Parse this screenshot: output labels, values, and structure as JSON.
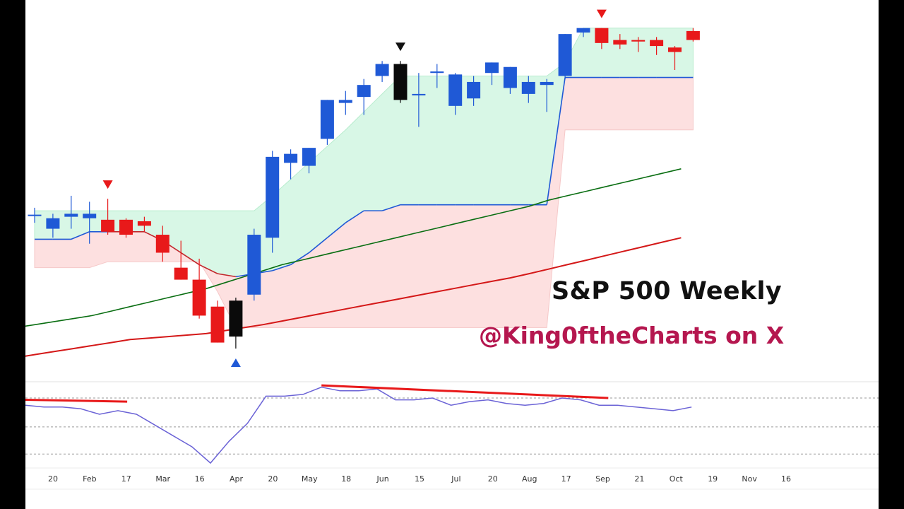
{
  "overlay": {
    "title": "S&P 500 Weekly",
    "handle": "@King0ftheCharts on X",
    "handle_color": "#b5174f"
  },
  "chart_data": {
    "type": "candlestick",
    "title": "S&P 500 Weekly",
    "candles": [
      {
        "o": 5867,
        "h": 5890,
        "l": 5840,
        "c": 5867,
        "color": "blue"
      },
      {
        "o": 5820,
        "h": 5870,
        "l": 5790,
        "c": 5855,
        "color": "blue"
      },
      {
        "o": 5860,
        "h": 5930,
        "l": 5820,
        "c": 5870,
        "color": "blue"
      },
      {
        "o": 5855,
        "h": 5910,
        "l": 5770,
        "c": 5870,
        "color": "blue"
      },
      {
        "o": 5850,
        "h": 5920,
        "l": 5800,
        "c": 5810,
        "color": "red"
      },
      {
        "o": 5850,
        "h": 5855,
        "l": 5790,
        "c": 5800,
        "color": "red"
      },
      {
        "o": 5845,
        "h": 5860,
        "l": 5810,
        "c": 5830,
        "color": "red"
      },
      {
        "o": 5800,
        "h": 5830,
        "l": 5710,
        "c": 5740,
        "color": "red"
      },
      {
        "o": 5690,
        "h": 5780,
        "l": 5650,
        "c": 5650,
        "color": "red"
      },
      {
        "o": 5650,
        "h": 5720,
        "l": 5520,
        "c": 5530,
        "color": "red"
      },
      {
        "o": 5560,
        "h": 5580,
        "l": 5440,
        "c": 5440,
        "color": "red"
      },
      {
        "o": 5460,
        "h": 5590,
        "l": 5420,
        "c": 5580,
        "color": "black"
      },
      {
        "o": 5600,
        "h": 5820,
        "l": 5580,
        "c": 5800,
        "color": "blue"
      },
      {
        "o": 5790,
        "h": 6080,
        "l": 5740,
        "c": 6060,
        "color": "blue"
      },
      {
        "o": 6040,
        "h": 6085,
        "l": 5985,
        "c": 6070,
        "color": "blue"
      },
      {
        "o": 6030,
        "h": 6090,
        "l": 6005,
        "c": 6090,
        "color": "blue"
      },
      {
        "o": 6120,
        "h": 6250,
        "l": 6100,
        "c": 6250,
        "color": "blue"
      },
      {
        "o": 6240,
        "h": 6280,
        "l": 6200,
        "c": 6250,
        "color": "blue"
      },
      {
        "o": 6260,
        "h": 6320,
        "l": 6200,
        "c": 6300,
        "color": "blue"
      },
      {
        "o": 6330,
        "h": 6380,
        "l": 6310,
        "c": 6370,
        "color": "blue"
      },
      {
        "o": 6370,
        "h": 6380,
        "l": 6240,
        "c": 6250,
        "color": "black"
      },
      {
        "o": 6270,
        "h": 6340,
        "l": 6160,
        "c": 6270,
        "color": "blue"
      },
      {
        "o": 6340,
        "h": 6370,
        "l": 6290,
        "c": 6345,
        "color": "blue"
      },
      {
        "o": 6230,
        "h": 6340,
        "l": 6200,
        "c": 6335,
        "color": "blue"
      },
      {
        "o": 6255,
        "h": 6330,
        "l": 6230,
        "c": 6310,
        "color": "blue"
      },
      {
        "o": 6340,
        "h": 6375,
        "l": 6300,
        "c": 6375,
        "color": "blue"
      },
      {
        "o": 6290,
        "h": 6360,
        "l": 6270,
        "c": 6360,
        "color": "blue"
      },
      {
        "o": 6270,
        "h": 6330,
        "l": 6240,
        "c": 6310,
        "color": "blue"
      },
      {
        "o": 6300,
        "h": 6320,
        "l": 6210,
        "c": 6310,
        "color": "blue"
      },
      {
        "o": 6330,
        "h": 6470,
        "l": 6320,
        "c": 6470,
        "color": "blue"
      },
      {
        "o": 6475,
        "h": 6490,
        "l": 6460,
        "c": 6490,
        "color": "blue"
      },
      {
        "o": 6490,
        "h": 6490,
        "l": 6420,
        "c": 6440,
        "color": "red"
      },
      {
        "o": 6450,
        "h": 6470,
        "l": 6420,
        "c": 6435,
        "color": "red"
      },
      {
        "o": 6450,
        "h": 6460,
        "l": 6410,
        "c": 6445,
        "color": "red"
      },
      {
        "o": 6450,
        "h": 6460,
        "l": 6400,
        "c": 6430,
        "color": "red"
      },
      {
        "o": 6425,
        "h": 6430,
        "l": 6350,
        "c": 6410,
        "color": "red"
      },
      {
        "o": 6480,
        "h": 6490,
        "l": 6445,
        "c": 6450,
        "color": "red"
      }
    ],
    "upper_band": [
      5880,
      5880,
      5880,
      5880,
      5880,
      5880,
      5880,
      5880,
      5880,
      5880,
      5880,
      5880,
      5880,
      5930,
      5985,
      6040,
      6095,
      6150,
      6210,
      6270,
      6330,
      6330,
      6330,
      6330,
      6330,
      6330,
      6330,
      6330,
      6330,
      6375,
      6490,
      6490,
      6490,
      6490,
      6490,
      6490,
      6490
    ],
    "mid_band": [
      5785,
      5785,
      5785,
      5810,
      5810,
      5810,
      5810,
      5780,
      5740,
      5700,
      5670,
      5660,
      5670,
      5680,
      5700,
      5740,
      5790,
      5840,
      5880,
      5880,
      5900,
      5900,
      5900,
      5900,
      5900,
      5900,
      5900,
      5900,
      5900,
      6325,
      6325,
      6325,
      6325,
      6325,
      6325,
      6325,
      6325
    ],
    "lower_band": [
      5690,
      5690,
      5690,
      5690,
      5710,
      5710,
      5710,
      5710,
      5710,
      5710,
      5610,
      5490,
      5490,
      5490,
      5490,
      5490,
      5490,
      5490,
      5490,
      5490,
      5490,
      5490,
      5490,
      5490,
      5490,
      5490,
      5490,
      5490,
      5490,
      6150,
      6150,
      6150,
      6150,
      6150,
      6150,
      6150,
      6150
    ],
    "ma_green": [
      5480,
      5490,
      5500,
      5510,
      5520,
      5530,
      5545,
      5560,
      5575,
      5590,
      5605,
      5620,
      5640,
      5660,
      5680,
      5700,
      5715,
      5730,
      5745,
      5760,
      5775,
      5790,
      5805,
      5820,
      5835,
      5850,
      5865,
      5880,
      5895,
      5915,
      5930,
      5945,
      5960,
      5975,
      5990,
      6005,
      6020
    ],
    "ma_red": [
      5380,
      5390,
      5400,
      5410,
      5420,
      5430,
      5440,
      5450,
      5455,
      5460,
      5465,
      5470,
      5480,
      5490,
      5500,
      5512,
      5524,
      5536,
      5548,
      5560,
      5572,
      5584,
      5596,
      5608,
      5620,
      5632,
      5644,
      5656,
      5670,
      5685,
      5700,
      5715,
      5730,
      5745,
      5760,
      5775,
      5790
    ],
    "signals": [
      {
        "index": 4,
        "type": "sell",
        "color": "#e8191a"
      },
      {
        "index": 11,
        "type": "buy",
        "color": "#1f59d6"
      },
      {
        "index": 20,
        "type": "sell",
        "color": "#111111"
      },
      {
        "index": 31,
        "type": "sell",
        "color": "#e8191a"
      }
    ],
    "oscillator": [
      62,
      61,
      61,
      60,
      57,
      59,
      57,
      51,
      45,
      39,
      30,
      42,
      52,
      67,
      67,
      68,
      72,
      70,
      70,
      71,
      65,
      65,
      66,
      62,
      64,
      65,
      63,
      62,
      63,
      66,
      65,
      62,
      62,
      61,
      60,
      59,
      61
    ],
    "oscillator_levels": [
      66,
      50,
      35
    ],
    "divergence_lines": [
      {
        "from": [
          0,
          65
        ],
        "to": [
          5.5,
          64
        ],
        "color": "#e8191a"
      },
      {
        "from": [
          16,
          73
        ],
        "to": [
          31.5,
          66
        ],
        "color": "#e8191a"
      }
    ],
    "x_ticks": [
      "20",
      "Feb",
      "17",
      "Mar",
      "16",
      "Apr",
      "20",
      "May",
      "18",
      "Jun",
      "15",
      "Jul",
      "20",
      "Aug",
      "17",
      "Sep",
      "21",
      "Oct",
      "19",
      "Nov",
      "16"
    ],
    "ylim": [
      5380,
      6560
    ],
    "osc_ylim": [
      30,
      75
    ],
    "colors": {
      "up": "#1f59d6",
      "down": "#e8191a",
      "inside": "#0a0a0a",
      "band_upper_fill": "#d8f7e6",
      "band_lower_fill": "#fde0e0",
      "mid_line": "#1f59d6",
      "mid_line_bear": "#c2262b",
      "ma_green": "#0a6e12",
      "ma_red": "#d41818",
      "osc_line": "#6b63d6"
    }
  }
}
